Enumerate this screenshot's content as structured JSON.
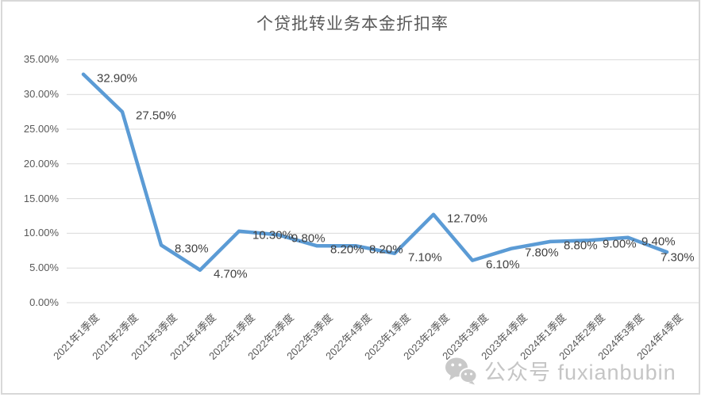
{
  "chart_data": {
    "type": "line",
    "title": "个贷批转业务本金折扣率",
    "categories": [
      "2021年1季度",
      "2021年2季度",
      "2021年3季度",
      "2021年4季度",
      "2022年1季度",
      "2022年2季度",
      "2022年3季度",
      "2022年4季度",
      "2023年1季度",
      "2023年2季度",
      "2023年3季度",
      "2023年4季度",
      "2024年1季度",
      "2024年2季度",
      "2024年3季度",
      "2024年4季度"
    ],
    "values": [
      32.9,
      27.5,
      8.3,
      4.7,
      10.3,
      9.8,
      8.2,
      8.2,
      7.1,
      12.7,
      6.1,
      7.8,
      8.8,
      9.0,
      9.4,
      7.3
    ],
    "data_labels": [
      "32.90%",
      "27.50%",
      "8.30%",
      "4.70%",
      "10.30%",
      "9.80%",
      "8.20%",
      "8.20%",
      "7.10%",
      "12.70%",
      "6.10%",
      "7.80%",
      "8.80%",
      "9.00%",
      "9.40%",
      "7.30%"
    ],
    "ytick_labels": [
      "0.00%",
      "5.00%",
      "10.00%",
      "15.00%",
      "20.00%",
      "25.00%",
      "30.00%",
      "35.00%"
    ],
    "ytick_step": 5,
    "ylim": [
      0,
      35
    ],
    "grid": true,
    "legend": "none",
    "xlabel": "",
    "ylabel": ""
  },
  "colors": {
    "line": "#5B9BD5",
    "grid": "#D9D9D9",
    "axis_text": "#595959",
    "label_text": "#404040",
    "watermark": "#C5C5C5",
    "border": "#D8D8D8"
  },
  "watermark": {
    "icon": "wechat-icon",
    "text": "公众号 fuxianbubin"
  }
}
